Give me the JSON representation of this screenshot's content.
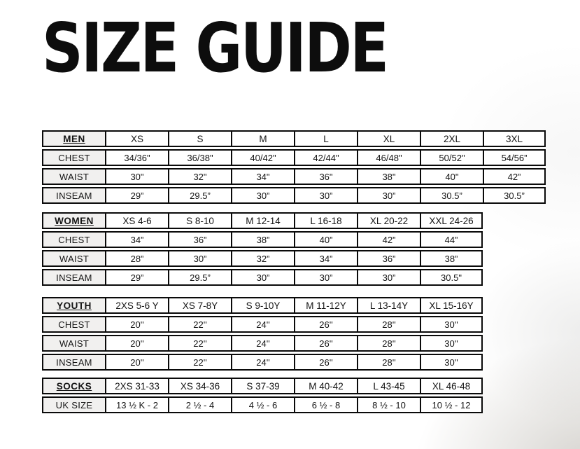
{
  "page": {
    "title": "SIZE GUIDE"
  },
  "colors": {
    "page_bg": "#ffffff",
    "title_color": "#0d0d0d",
    "table_border": "#0a0a0a",
    "label_cell_bg": "#f1f0ef"
  },
  "tables": [
    {
      "name": "men",
      "label": "MEN",
      "sizes": [
        "XS",
        "S",
        "M",
        "L",
        "XL",
        "2XL",
        "3XL"
      ],
      "rows": [
        {
          "label": "CHEST",
          "values": [
            "34/36\"",
            "36/38\"",
            "40/42\"",
            "42/44\"",
            "46/48\"",
            "50/52\"",
            "54/56”"
          ]
        },
        {
          "label": "WAIST",
          "values": [
            "30\"",
            "32\"",
            "34\"",
            "36\"",
            "38\"",
            "40\"",
            "42”"
          ]
        },
        {
          "label": "INSEAM",
          "values": [
            "29”",
            "29.5”",
            "30”",
            "30”",
            "30”",
            "30.5”",
            "30.5”"
          ]
        }
      ]
    },
    {
      "name": "women",
      "label": "WOMEN",
      "sizes": [
        "XS 4-6",
        "S 8-10",
        "M 12-14",
        "L 16-18",
        "XL 20-22",
        "XXL 24-26"
      ],
      "rows": [
        {
          "label": "CHEST",
          "values": [
            "34”",
            "36”",
            "38”",
            "40”",
            "42”",
            "44”"
          ]
        },
        {
          "label": "WAIST",
          "values": [
            "28”",
            "30”",
            "32”",
            "34”",
            "36”",
            "38”"
          ]
        },
        {
          "label": "INSEAM",
          "values": [
            "29”",
            "29.5”",
            "30”",
            "30”",
            "30”",
            "30.5\""
          ]
        }
      ]
    },
    {
      "name": "youth",
      "label": "YOUTH",
      "sizes": [
        "2XS 5-6 Y",
        "XS 7-8Y",
        "S 9-10Y",
        "M 11-12Y",
        "L 13-14Y",
        "XL 15-16Y"
      ],
      "rows": [
        {
          "label": "CHEST",
          "values": [
            "20''",
            "22''",
            "24''",
            "26''",
            "28''",
            "30''"
          ]
        },
        {
          "label": "WAIST",
          "values": [
            "20''",
            "22''",
            "24''",
            "26''",
            "28''",
            "30''"
          ]
        },
        {
          "label": "INSEAM",
          "values": [
            "20''",
            "22''",
            "24''",
            "26''",
            "28''",
            "30''"
          ]
        }
      ]
    },
    {
      "name": "socks",
      "label": "SOCKS",
      "sizes": [
        "2XS 31-33",
        "XS 34-36",
        "S 37-39",
        "M 40-42",
        "L 43-45",
        "XL 46-48"
      ],
      "rows": [
        {
          "label": "UK SIZE",
          "values": [
            "13 ½ K - 2",
            "2 ½ - 4",
            "4 ½ - 6",
            "6 ½ - 8",
            "8 ½ - 10",
            "10 ½ - 12"
          ]
        }
      ]
    }
  ]
}
